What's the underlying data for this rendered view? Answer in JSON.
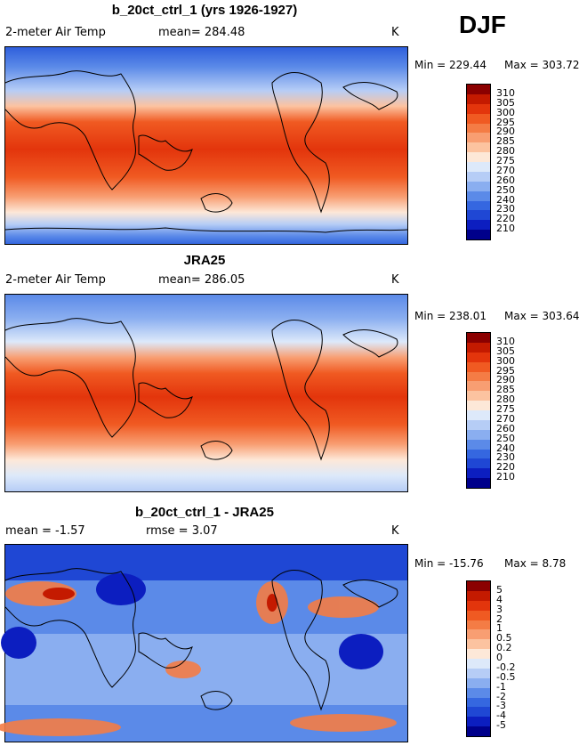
{
  "season": "DJF",
  "panels": [
    {
      "title": "b_20ct_ctrl_1 (yrs 1926-1927)",
      "left_text": "2-meter Air Temp",
      "mid_text": "mean= 284.48",
      "unit": "K",
      "min_label": "Min = 229.44",
      "max_label": "Max = 303.72",
      "levels": [
        "310",
        "305",
        "300",
        "295",
        "290",
        "285",
        "280",
        "275",
        "270",
        "260",
        "250",
        "240",
        "230",
        "220",
        "210"
      ],
      "colors": [
        "#8b0000",
        "#c41a00",
        "#e3350c",
        "#f05a22",
        "#f47c45",
        "#f89e72",
        "#fcc3a0",
        "#fde8d8",
        "#dde9fa",
        "#b6cdf6",
        "#8aaef0",
        "#5b8ae8",
        "#3567e0",
        "#1f47d4",
        "#0c1ec0",
        "#00008b"
      ]
    },
    {
      "title": "JRA25",
      "left_text": "2-meter Air Temp",
      "mid_text": "mean= 286.05",
      "unit": "K",
      "min_label": "Min = 238.01",
      "max_label": "Max = 303.64",
      "levels": [
        "310",
        "305",
        "300",
        "295",
        "290",
        "285",
        "280",
        "275",
        "270",
        "260",
        "250",
        "240",
        "230",
        "220",
        "210"
      ],
      "colors": [
        "#8b0000",
        "#c41a00",
        "#e3350c",
        "#f05a22",
        "#f47c45",
        "#f89e72",
        "#fcc3a0",
        "#fde8d8",
        "#dde9fa",
        "#b6cdf6",
        "#8aaef0",
        "#5b8ae8",
        "#3567e0",
        "#1f47d4",
        "#0c1ec0",
        "#00008b"
      ]
    },
    {
      "title": "b_20ct_ctrl_1 - JRA25",
      "left_text": "mean =   -1.57",
      "mid_text": "rmse =    3.07",
      "unit": "K",
      "min_label": "Min = -15.76",
      "max_label": "Max =   8.78",
      "levels": [
        "5",
        "4",
        "3",
        "2",
        "1",
        "0.5",
        "0.2",
        "0",
        "-0.2",
        "-0.5",
        "-1",
        "-2",
        "-3",
        "-4",
        "-5"
      ],
      "colors": [
        "#8b0000",
        "#c41a00",
        "#e3350c",
        "#f05a22",
        "#f47c45",
        "#f89e72",
        "#fcc3a0",
        "#fde8d8",
        "#dde9fa",
        "#b6cdf6",
        "#8aaef0",
        "#5b8ae8",
        "#3567e0",
        "#1f47d4",
        "#0c1ec0",
        "#00008b"
      ]
    }
  ]
}
